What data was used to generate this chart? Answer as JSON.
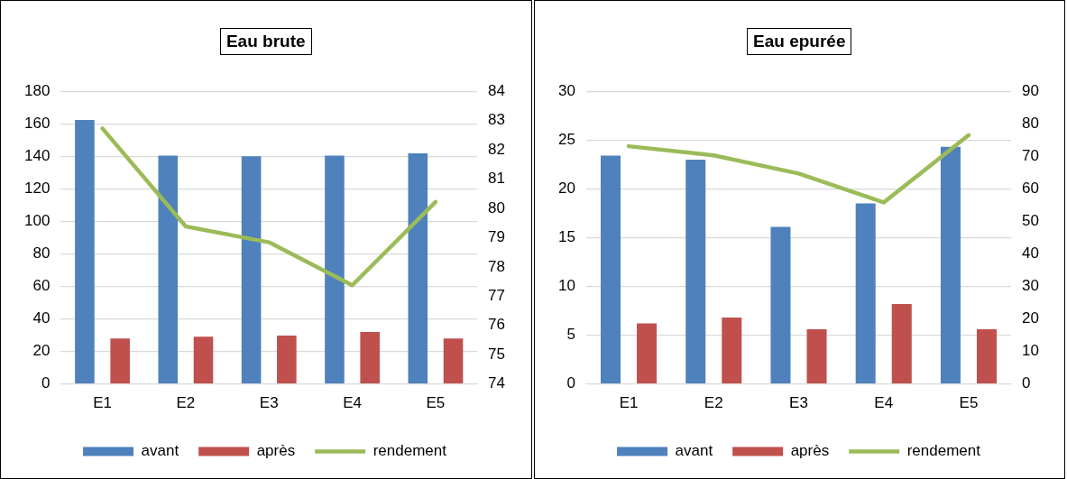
{
  "chart_data": [
    {
      "type": "bar",
      "title": "Eau brute",
      "categories": [
        "E1",
        "E2",
        "E3",
        "E4",
        "E5"
      ],
      "series": [
        {
          "name": "avant",
          "color": "#4f81bd",
          "values": [
            162.3,
            140.4,
            140,
            140.4,
            141.8
          ]
        },
        {
          "name": "après",
          "color": "#c0504d",
          "values": [
            27.9,
            29,
            29.8,
            31.9,
            27.9
          ]
        },
        {
          "name": "rendement",
          "type": "line",
          "axis": "y2",
          "color": "#9bbb59",
          "values": [
            82.73,
            79.38,
            78.84,
            77.37,
            80.22
          ]
        }
      ],
      "ylim": [
        0,
        180
      ],
      "yticks": [
        0,
        20,
        40,
        60,
        80,
        100,
        120,
        140,
        160,
        180
      ],
      "y2lim": [
        74,
        84
      ],
      "y2ticks": [
        74,
        75,
        76,
        77,
        78,
        79,
        80,
        81,
        82,
        83,
        84
      ],
      "grid": "y",
      "legend": "bottom",
      "marker": "none"
    },
    {
      "type": "bar",
      "title": "Eau epurée",
      "categories": [
        "E1",
        "E2",
        "E3",
        "E4",
        "E5"
      ],
      "series": [
        {
          "name": "avant",
          "color": "#4f81bd",
          "values": [
            23.4,
            23,
            16.1,
            18.5,
            24.3
          ]
        },
        {
          "name": "après",
          "color": "#c0504d",
          "values": [
            6.2,
            6.8,
            5.6,
            8.2,
            5.6
          ]
        },
        {
          "name": "rendement",
          "type": "line",
          "axis": "y2",
          "color": "#9bbb59",
          "values": [
            73.1,
            70.3,
            64.7,
            55.8,
            76.5
          ]
        }
      ],
      "ylim": [
        0,
        30
      ],
      "yticks": [
        0,
        5,
        10,
        15,
        20,
        25,
        30
      ],
      "y2lim": [
        0,
        90
      ],
      "y2ticks": [
        0,
        10,
        20,
        30,
        40,
        50,
        60,
        70,
        80,
        90
      ],
      "grid": "y",
      "legend": "bottom",
      "marker": "none"
    }
  ]
}
